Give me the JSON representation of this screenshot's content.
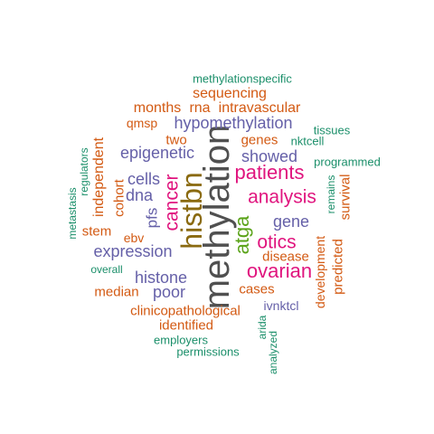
{
  "palette": {
    "gray": "#505050",
    "brown": "#8a6a10",
    "pink": "#e0147e",
    "green": "#5aa319",
    "purple": "#6560a8",
    "orange": "#d35a13",
    "teal": "#1b8f6a"
  },
  "words": [
    {
      "text": "methylation",
      "color": "gray"
    },
    {
      "text": "histbn",
      "color": "brown"
    },
    {
      "text": "patients",
      "color": "pink"
    },
    {
      "text": "analysis",
      "color": "pink"
    },
    {
      "text": "cancer",
      "color": "pink"
    },
    {
      "text": "atga",
      "color": "green"
    },
    {
      "text": "otics",
      "color": "pink"
    },
    {
      "text": "ovarian",
      "color": "pink"
    },
    {
      "text": "hypomethylation",
      "color": "purple"
    },
    {
      "text": "epigenetic",
      "color": "purple"
    },
    {
      "text": "showed",
      "color": "purple"
    },
    {
      "text": "expression",
      "color": "purple"
    },
    {
      "text": "histone",
      "color": "purple"
    },
    {
      "text": "cells",
      "color": "purple"
    },
    {
      "text": "dna",
      "color": "purple"
    },
    {
      "text": "gene",
      "color": "purple"
    },
    {
      "text": "poor",
      "color": "purple"
    },
    {
      "text": "pfs",
      "color": "purple"
    },
    {
      "text": "sequencing",
      "color": "orange"
    },
    {
      "text": "months",
      "color": "orange"
    },
    {
      "text": "rna",
      "color": "orange"
    },
    {
      "text": "intravascular",
      "color": "orange"
    },
    {
      "text": "qmsp",
      "color": "orange"
    },
    {
      "text": "two",
      "color": "orange"
    },
    {
      "text": "genes",
      "color": "orange"
    },
    {
      "text": "independent",
      "color": "orange"
    },
    {
      "text": "cohort",
      "color": "orange"
    },
    {
      "text": "stem",
      "color": "orange"
    },
    {
      "text": "ebv",
      "color": "orange"
    },
    {
      "text": "median",
      "color": "orange"
    },
    {
      "text": "disease",
      "color": "orange"
    },
    {
      "text": "cases",
      "color": "orange"
    },
    {
      "text": "clinicopathological",
      "color": "orange"
    },
    {
      "text": "identified",
      "color": "orange"
    },
    {
      "text": "development",
      "color": "orange"
    },
    {
      "text": "predicted",
      "color": "orange"
    },
    {
      "text": "survival",
      "color": "orange"
    },
    {
      "text": "methylationspecific",
      "color": "teal"
    },
    {
      "text": "tissues",
      "color": "teal"
    },
    {
      "text": "nktcell",
      "color": "teal"
    },
    {
      "text": "programmed",
      "color": "teal"
    },
    {
      "text": "remains",
      "color": "teal"
    },
    {
      "text": "regulators",
      "color": "teal"
    },
    {
      "text": "metastasis",
      "color": "teal"
    },
    {
      "text": "overall",
      "color": "teal"
    },
    {
      "text": "employers",
      "color": "teal"
    },
    {
      "text": "permissions",
      "color": "teal"
    },
    {
      "text": "arida",
      "color": "teal"
    },
    {
      "text": "analyzed",
      "color": "teal"
    },
    {
      "text": "ivnktcl",
      "color": "purple"
    }
  ]
}
